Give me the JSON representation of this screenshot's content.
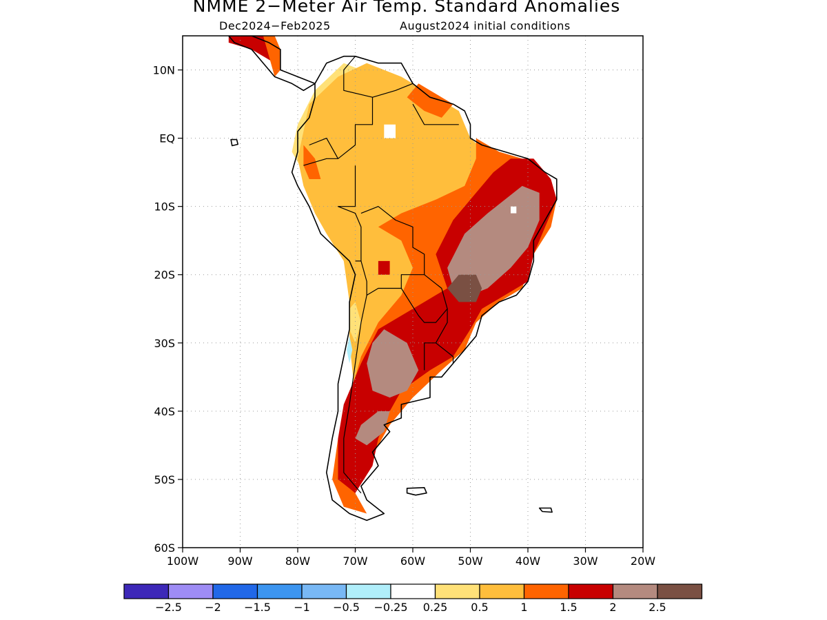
{
  "header": {
    "title": "NMME 2−Meter Air Temp. Standard Anomalies",
    "period": "Dec2024−Feb2025",
    "initial_conditions": "August2024 initial conditions"
  },
  "map": {
    "lon_range": [
      -100,
      -20
    ],
    "lat_range": [
      -60,
      15
    ],
    "lat_ticks": [
      {
        "value": 10,
        "label": "10N"
      },
      {
        "value": 0,
        "label": "EQ"
      },
      {
        "value": -10,
        "label": "10S"
      },
      {
        "value": -20,
        "label": "20S"
      },
      {
        "value": -30,
        "label": "30S"
      },
      {
        "value": -40,
        "label": "40S"
      },
      {
        "value": -50,
        "label": "50S"
      },
      {
        "value": -60,
        "label": "60S"
      }
    ],
    "lon_ticks": [
      {
        "value": -100,
        "label": "100W"
      },
      {
        "value": -90,
        "label": "90W"
      },
      {
        "value": -80,
        "label": "80W"
      },
      {
        "value": -70,
        "label": "70W"
      },
      {
        "value": -60,
        "label": "60W"
      },
      {
        "value": -50,
        "label": "50W"
      },
      {
        "value": -40,
        "label": "40W"
      },
      {
        "value": -30,
        "label": "30W"
      },
      {
        "value": -20,
        "label": "20W"
      }
    ],
    "grid": "dotted"
  },
  "colorbar": {
    "colors": [
      "#3d28b8",
      "#9e8cf5",
      "#2168e8",
      "#3c95f0",
      "#78b8f5",
      "#b0eefa",
      "#ffffff",
      "#ffe178",
      "#ffbe3c",
      "#ff6400",
      "#c80000",
      "#b48a7f",
      "#7a5043"
    ],
    "labels": [
      "−2.5",
      "−2",
      "−1.5",
      "−1",
      "−0.5",
      "−0.25",
      "0.25",
      "0.5",
      "1",
      "1.5",
      "2",
      "2.5"
    ]
  },
  "anomaly_regions": [
    {
      "level": "0.25 to 0.5",
      "color": "#ffe178",
      "lonlat": [
        [
          -77,
          7
        ],
        [
          -72,
          11
        ],
        [
          -66,
          9
        ],
        [
          -60,
          5
        ],
        [
          -55,
          -1
        ],
        [
          -62,
          -3
        ],
        [
          -72,
          -4
        ],
        [
          -79,
          -5
        ],
        [
          -81,
          -2
        ],
        [
          -80,
          2
        ]
      ]
    },
    {
      "level": "0.5 to 1",
      "color": "#ffbe3c",
      "lonlat": [
        [
          -78,
          5
        ],
        [
          -73,
          9
        ],
        [
          -68,
          11
        ],
        [
          -62,
          9
        ],
        [
          -58,
          7
        ],
        [
          -52,
          4
        ],
        [
          -50,
          0
        ],
        [
          -46,
          -3
        ],
        [
          -44,
          -6
        ],
        [
          -48,
          -10
        ],
        [
          -50,
          -15
        ],
        [
          -52,
          -19
        ],
        [
          -51,
          -24
        ],
        [
          -54,
          -30
        ],
        [
          -60,
          -32
        ],
        [
          -64,
          -36
        ],
        [
          -68,
          -40
        ],
        [
          -70,
          -38
        ],
        [
          -71,
          -30
        ],
        [
          -71,
          -24
        ],
        [
          -72,
          -18
        ],
        [
          -75,
          -14
        ],
        [
          -77,
          -11
        ],
        [
          -79,
          -7
        ],
        [
          -80,
          -3
        ],
        [
          -79,
          1
        ]
      ]
    },
    {
      "level": "1 to 1.5",
      "color": "#ff6400",
      "lonlat": [
        [
          -49,
          0
        ],
        [
          -45,
          -2
        ],
        [
          -41,
          -3
        ],
        [
          -37,
          -6
        ],
        [
          -35,
          -9
        ],
        [
          -36,
          -13
        ],
        [
          -39,
          -17
        ],
        [
          -41,
          -22
        ],
        [
          -45,
          -24
        ],
        [
          -49,
          -27
        ],
        [
          -51,
          -31
        ],
        [
          -55,
          -34
        ],
        [
          -60,
          -38
        ],
        [
          -64,
          -42
        ],
        [
          -68,
          -48
        ],
        [
          -70,
          -52
        ],
        [
          -68,
          -55
        ],
        [
          -72,
          -54
        ],
        [
          -74,
          -50
        ],
        [
          -73,
          -44
        ],
        [
          -71,
          -38
        ],
        [
          -69,
          -32
        ],
        [
          -66,
          -27
        ],
        [
          -62,
          -23
        ],
        [
          -60,
          -19
        ],
        [
          -62,
          -15
        ],
        [
          -66,
          -13
        ],
        [
          -62,
          -11
        ],
        [
          -56,
          -9
        ],
        [
          -51,
          -7
        ],
        [
          -49,
          -3
        ]
      ]
    },
    {
      "level": "1.5 to 2",
      "color": "#c80000",
      "lonlat": [
        [
          -43,
          -3
        ],
        [
          -39,
          -3
        ],
        [
          -36,
          -6
        ],
        [
          -35,
          -9
        ],
        [
          -37,
          -13
        ],
        [
          -39,
          -17
        ],
        [
          -40,
          -21
        ],
        [
          -44,
          -23
        ],
        [
          -48,
          -25
        ],
        [
          -50,
          -28
        ],
        [
          -53,
          -32
        ],
        [
          -57,
          -34
        ],
        [
          -62,
          -37
        ],
        [
          -64,
          -40
        ],
        [
          -66,
          -44
        ],
        [
          -67,
          -48
        ],
        [
          -70,
          -52
        ],
        [
          -73,
          -50
        ],
        [
          -73,
          -44
        ],
        [
          -72,
          -39
        ],
        [
          -69,
          -33
        ],
        [
          -66,
          -28
        ],
        [
          -58,
          -24
        ],
        [
          -54,
          -22
        ],
        [
          -56,
          -17
        ],
        [
          -53,
          -12
        ],
        [
          -49,
          -8
        ],
        [
          -46,
          -5
        ]
      ]
    },
    {
      "level": "2 to 2.5",
      "color": "#b48a7f",
      "lonlat": [
        [
          -41,
          -7
        ],
        [
          -38,
          -8
        ],
        [
          -38,
          -12
        ],
        [
          -40,
          -16
        ],
        [
          -43,
          -19
        ],
        [
          -47,
          -22
        ],
        [
          -50,
          -23
        ],
        [
          -53,
          -22
        ],
        [
          -54,
          -19
        ],
        [
          -51,
          -14
        ],
        [
          -47,
          -11
        ],
        [
          -44,
          -9
        ]
      ]
    },
    {
      "level": "2 to 2.5",
      "color": "#b48a7f",
      "lonlat": [
        [
          -65,
          -28
        ],
        [
          -61,
          -30
        ],
        [
          -59,
          -34
        ],
        [
          -61,
          -37
        ],
        [
          -64,
          -38
        ],
        [
          -67,
          -37
        ],
        [
          -68,
          -33
        ],
        [
          -67,
          -30
        ]
      ]
    },
    {
      "level": "2 to 2.5",
      "color": "#b48a7f",
      "lonlat": [
        [
          -66,
          -40
        ],
        [
          -64,
          -40
        ],
        [
          -65,
          -43
        ],
        [
          -68,
          -45
        ],
        [
          -70,
          -44
        ],
        [
          -69,
          -42
        ]
      ]
    },
    {
      "level": "above 2.5",
      "color": "#7a5043",
      "lonlat": [
        [
          -52,
          -20
        ],
        [
          -49,
          -20
        ],
        [
          -48,
          -22
        ],
        [
          -49,
          -24
        ],
        [
          -52,
          -24
        ],
        [
          -54,
          -22
        ]
      ]
    },
    {
      "level": "0.25 to 0.5",
      "color": "#ffe178",
      "lonlat": [
        [
          -70,
          -24
        ],
        [
          -69,
          -27
        ],
        [
          -70,
          -30
        ],
        [
          -71,
          -28
        ],
        [
          -71,
          -25
        ]
      ]
    },
    {
      "level": "-0.5 to -0.25",
      "color": "#b0eefa",
      "lonlat": [
        [
          -71,
          -29
        ],
        [
          -70.5,
          -31
        ],
        [
          -71,
          -33
        ],
        [
          -71.5,
          -31
        ]
      ]
    },
    {
      "level": "1 to 1.5",
      "color": "#ff6400",
      "lonlat": [
        [
          -59,
          8
        ],
        [
          -55,
          6
        ],
        [
          -53,
          5
        ],
        [
          -55,
          3
        ],
        [
          -58,
          4
        ],
        [
          -61,
          6
        ]
      ]
    },
    {
      "level": "1.5 to 2",
      "color": "#c80000",
      "lonlat": [
        [
          -92,
          15
        ],
        [
          -86,
          15
        ],
        [
          -83,
          13
        ],
        [
          -84,
          11
        ],
        [
          -88,
          13
        ],
        [
          -92,
          14
        ]
      ]
    },
    {
      "level": "1 to 1.5",
      "color": "#ff6400",
      "lonlat": [
        [
          -86,
          15
        ],
        [
          -84,
          15
        ],
        [
          -83,
          13
        ],
        [
          -83,
          10
        ],
        [
          -84,
          9
        ],
        [
          -85,
          12
        ]
      ]
    },
    {
      "level": "1 to 1.5",
      "color": "#ff6400",
      "lonlat": [
        [
          -79,
          -1
        ],
        [
          -77,
          -3
        ],
        [
          -76,
          -6
        ],
        [
          -78,
          -6
        ],
        [
          -79,
          -4
        ]
      ]
    },
    {
      "level": "1.5 to 2",
      "color": "#c80000",
      "lonlat": [
        [
          -66,
          -18
        ],
        [
          -64,
          -18
        ],
        [
          -64,
          -20
        ],
        [
          -66,
          -20
        ]
      ]
    },
    {
      "level": "0 (no anomaly)",
      "color": "#ffffff",
      "lonlat": [
        [
          -65,
          2
        ],
        [
          -63,
          2
        ],
        [
          -63,
          0
        ],
        [
          -65,
          0
        ]
      ]
    },
    {
      "level": "0 (no anomaly)",
      "color": "#ffffff",
      "lonlat": [
        [
          -43,
          -10
        ],
        [
          -42,
          -10
        ],
        [
          -42,
          -11
        ],
        [
          -43,
          -11
        ]
      ]
    }
  ],
  "coastlines": [
    {
      "name": "south-america",
      "lonlat": [
        [
          -77,
          8
        ],
        [
          -75,
          11
        ],
        [
          -72,
          12
        ],
        [
          -70,
          12
        ],
        [
          -66,
          11
        ],
        [
          -62,
          11
        ],
        [
          -60,
          8
        ],
        [
          -57,
          6
        ],
        [
          -53,
          5
        ],
        [
          -51,
          4
        ],
        [
          -50,
          2
        ],
        [
          -50,
          0
        ],
        [
          -48,
          -1
        ],
        [
          -44,
          -2
        ],
        [
          -40,
          -3
        ],
        [
          -37,
          -5
        ],
        [
          -35,
          -6
        ],
        [
          -35,
          -9
        ],
        [
          -37,
          -12
        ],
        [
          -39,
          -15
        ],
        [
          -39,
          -18
        ],
        [
          -40,
          -21
        ],
        [
          -42,
          -23
        ],
        [
          -45,
          -24
        ],
        [
          -48,
          -26
        ],
        [
          -49,
          -29
        ],
        [
          -51,
          -31
        ],
        [
          -53,
          -33
        ],
        [
          -55,
          -35
        ],
        [
          -57,
          -35
        ],
        [
          -57,
          -38
        ],
        [
          -62,
          -39
        ],
        [
          -62,
          -41
        ],
        [
          -65,
          -42
        ],
        [
          -64,
          -43
        ],
        [
          -67,
          -46
        ],
        [
          -66,
          -48
        ],
        [
          -69,
          -51
        ],
        [
          -68,
          -53
        ],
        [
          -65,
          -55
        ],
        [
          -68,
          -56
        ],
        [
          -71,
          -55
        ],
        [
          -74,
          -53
        ],
        [
          -75,
          -49
        ],
        [
          -74,
          -44
        ],
        [
          -73,
          -40
        ],
        [
          -73,
          -36
        ],
        [
          -72,
          -32
        ],
        [
          -71,
          -28
        ],
        [
          -71,
          -24
        ],
        [
          -70,
          -20
        ],
        [
          -71,
          -18
        ],
        [
          -76,
          -14
        ],
        [
          -78,
          -10
        ],
        [
          -80,
          -7
        ],
        [
          -81,
          -5
        ],
        [
          -80,
          -2
        ],
        [
          -80,
          1
        ],
        [
          -78,
          3
        ],
        [
          -77,
          6
        ]
      ]
    },
    {
      "name": "central-america",
      "lonlat": [
        [
          -92,
          15
        ],
        [
          -88,
          15
        ],
        [
          -85,
          14
        ],
        [
          -83,
          13
        ],
        [
          -83,
          10
        ],
        [
          -80,
          9
        ],
        [
          -77,
          8
        ],
        [
          -79,
          7
        ],
        [
          -81,
          8
        ],
        [
          -84,
          9
        ],
        [
          -86,
          11
        ],
        [
          -88,
          13
        ],
        [
          -91,
          14
        ]
      ]
    },
    {
      "name": "falkland-islands",
      "lonlat": [
        [
          -61,
          -51.3
        ],
        [
          -58,
          -51.2
        ],
        [
          -57.6,
          -52
        ],
        [
          -59.5,
          -52.3
        ],
        [
          -61,
          -52
        ]
      ]
    },
    {
      "name": "south-georgia",
      "lonlat": [
        [
          -38,
          -54.2
        ],
        [
          -36,
          -54.2
        ],
        [
          -35.8,
          -54.8
        ],
        [
          -37.5,
          -54.7
        ]
      ]
    },
    {
      "name": "galapagos",
      "lonlat": [
        [
          -91.6,
          -0.2
        ],
        [
          -90.6,
          -0.2
        ],
        [
          -90.4,
          -0.9
        ],
        [
          -91.4,
          -1.1
        ]
      ]
    }
  ],
  "borders": [
    [
      [
        -60,
        8
      ],
      [
        -63,
        7
      ],
      [
        -67,
        6
      ],
      [
        -67,
        2
      ],
      [
        -70,
        2
      ],
      [
        -70,
        -1
      ],
      [
        -73,
        -3
      ],
      [
        -75,
        -3
      ],
      [
        -79,
        -4
      ]
    ],
    [
      [
        -70,
        12
      ],
      [
        -72,
        10
      ],
      [
        -72,
        7
      ],
      [
        -67,
        6
      ]
    ],
    [
      [
        -78,
        -1
      ],
      [
        -75,
        0
      ],
      [
        -73,
        -3
      ]
    ],
    [
      [
        -70,
        -4
      ],
      [
        -70,
        -10
      ],
      [
        -73,
        -10
      ],
      [
        -70,
        -11
      ],
      [
        -69,
        -13
      ],
      [
        -69,
        -16
      ],
      [
        -69,
        -18
      ],
      [
        -70,
        -18
      ]
    ],
    [
      [
        -69,
        -11
      ],
      [
        -66,
        -10
      ],
      [
        -63,
        -12
      ],
      [
        -60,
        -13
      ],
      [
        -60,
        -16
      ],
      [
        -58,
        -17
      ],
      [
        -58,
        -20
      ],
      [
        -62,
        -20
      ],
      [
        -62,
        -22
      ],
      [
        -66,
        -22
      ],
      [
        -68,
        -23
      ],
      [
        -68,
        -21
      ],
      [
        -69,
        -18
      ]
    ],
    [
      [
        -58,
        -20
      ],
      [
        -55,
        -22
      ],
      [
        -54,
        -25
      ],
      [
        -56,
        -27
      ],
      [
        -58,
        -27
      ],
      [
        -59,
        -26
      ],
      [
        -62,
        -22
      ]
    ],
    [
      [
        -68,
        -23
      ],
      [
        -69,
        -27
      ],
      [
        -70,
        -33
      ],
      [
        -71,
        -39
      ],
      [
        -72,
        -44
      ],
      [
        -72,
        -49
      ],
      [
        -69,
        -52
      ]
    ],
    [
      [
        -54,
        -25
      ],
      [
        -54,
        -27
      ],
      [
        -56,
        -30
      ],
      [
        -58,
        -30
      ],
      [
        -58,
        -34
      ]
    ],
    [
      [
        -53,
        -33
      ],
      [
        -53,
        -32
      ],
      [
        -56,
        -30
      ]
    ],
    [
      [
        -60,
        5
      ],
      [
        -58,
        2
      ],
      [
        -56,
        2
      ],
      [
        -54,
        2
      ],
      [
        -52,
        2
      ]
    ]
  ]
}
